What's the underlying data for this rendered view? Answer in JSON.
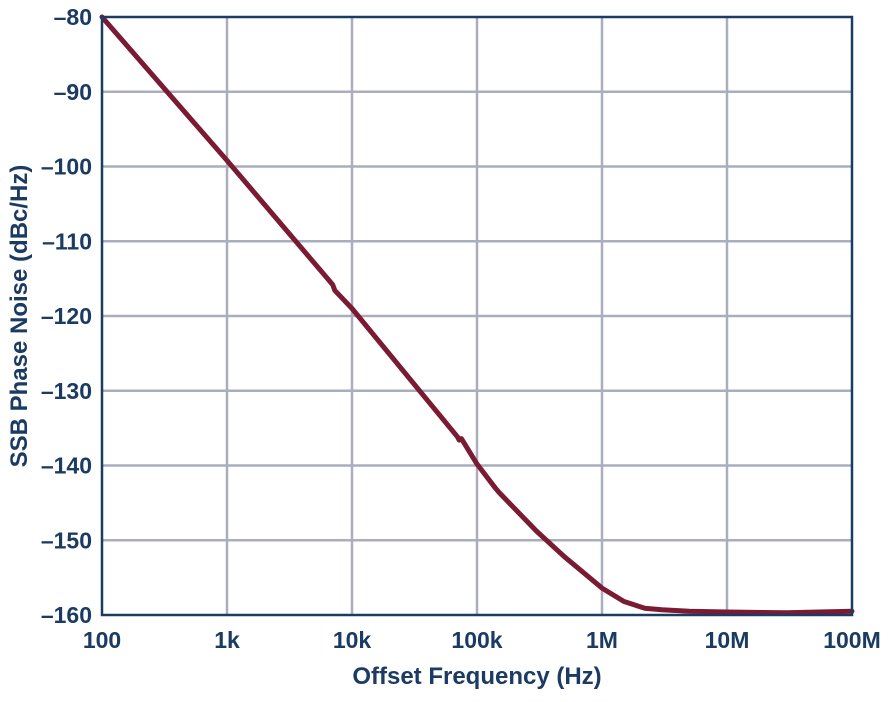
{
  "chart_data": {
    "type": "line",
    "title": "",
    "xlabel": "Offset Frequency (Hz)",
    "ylabel": "SSB Phase Noise (dBc/Hz)",
    "x_scale": "log",
    "xlim": [
      100,
      100000000
    ],
    "ylim": [
      -160,
      -80
    ],
    "grid": true,
    "x_ticks": [
      {
        "value": 100,
        "label": "100"
      },
      {
        "value": 1000,
        "label": "1k"
      },
      {
        "value": 10000,
        "label": "10k"
      },
      {
        "value": 100000,
        "label": "100k"
      },
      {
        "value": 1000000,
        "label": "1M"
      },
      {
        "value": 10000000,
        "label": "10M"
      },
      {
        "value": 100000000,
        "label": "100M"
      }
    ],
    "y_ticks": [
      {
        "value": -80,
        "label": "–80"
      },
      {
        "value": -90,
        "label": "–90"
      },
      {
        "value": -100,
        "label": "–100"
      },
      {
        "value": -110,
        "label": "–110"
      },
      {
        "value": -120,
        "label": "–120"
      },
      {
        "value": -130,
        "label": "–130"
      },
      {
        "value": -140,
        "label": "–140"
      },
      {
        "value": -150,
        "label": "–150"
      },
      {
        "value": -160,
        "label": "–160"
      }
    ],
    "series": [
      {
        "color": "#7a1a33",
        "x": [
          100,
          1000,
          7000,
          7300,
          10000,
          70000,
          72000,
          75000,
          100000,
          140000,
          150000,
          300000,
          500000,
          1000000,
          1500000,
          2200000,
          3000000,
          5000000,
          10000000,
          30000000,
          100000000
        ],
        "y": [
          -80,
          -99.2,
          -115.8,
          -116.6,
          -119.0,
          -136.2,
          -136.6,
          -136.4,
          -139.8,
          -143.0,
          -143.6,
          -148.8,
          -152.2,
          -156.4,
          -158.2,
          -159.1,
          -159.3,
          -159.5,
          -159.6,
          -159.7,
          -159.5
        ]
      }
    ]
  },
  "colors": {
    "axis": "#1b3b63",
    "grid": "#a9aebf",
    "line": "#7a1a33",
    "text": "#1b3b63"
  }
}
